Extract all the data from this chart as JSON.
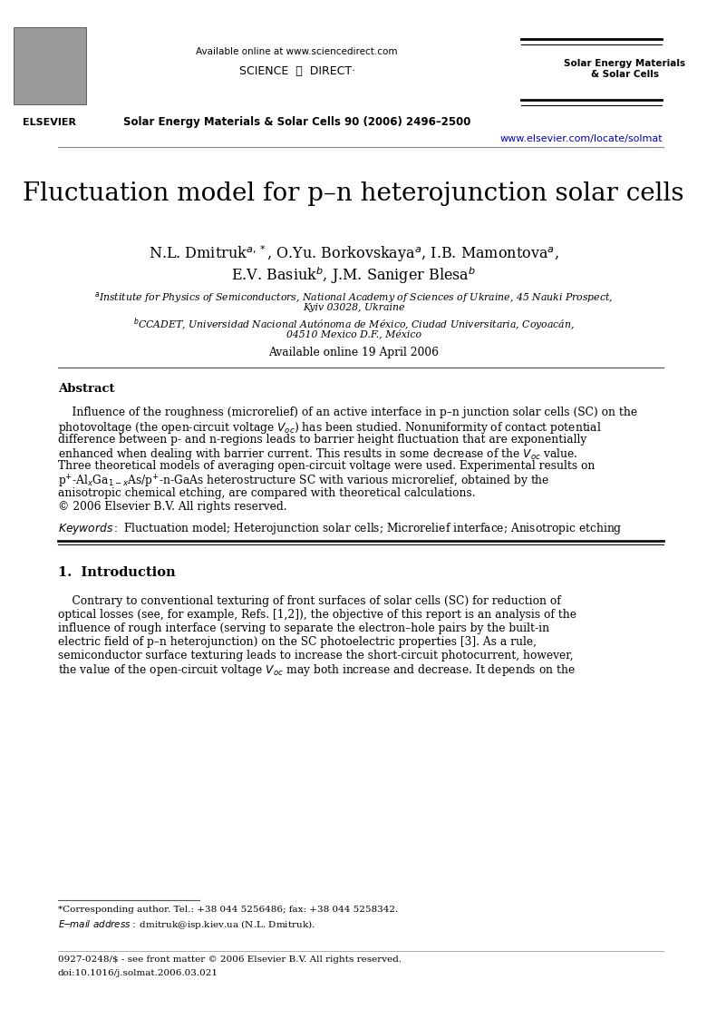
{
  "page_width": 7.8,
  "page_height": 11.34,
  "dpi": 100,
  "background_color": "#ffffff",
  "header": {
    "available_online": "Available online at www.sciencedirect.com",
    "science_direct_text": "SCIENCE  ⓓ  DIRECT·",
    "journal_name_right": "Solar Energy Materials\n& Solar Cells",
    "journal_ref": "Solar Energy Materials & Solar Cells 90 (2006) 2496–2500",
    "url": "www.elsevier.com/locate/solmat",
    "url_color": "#0000bb"
  },
  "title": "Fluctuation model for p–n heterojunction solar cells",
  "author_line1": "N.L. Dmitruk$^{a,*}$, O.Yu. Borkovskaya$^{a}$, I.B. Mamontova$^{a}$,",
  "author_line2": "E.V. Basiuk$^{b}$, J.M. Saniger Blesa$^{b}$",
  "affil_a_line1": "$^{a}$Institute for Physics of Semiconductors, National Academy of Sciences of Ukraine, 45 Nauki Prospect,",
  "affil_a_line2": "Kyiv 03028, Ukraine",
  "affil_b_line1": "$^{b}$CCADET, Universidad Nacional Autónoma de México, Ciudad Universitaria, Coyoacán,",
  "affil_b_line2": "04510 Mexico D.F., México",
  "available_online_paper": "Available online 19 April 2006",
  "abstract_title": "Abstract",
  "abstract_lines": [
    "    Influence of the roughness (microrelief) of an active interface in p–n junction solar cells (SC) on the",
    "photovoltage (the open-circuit voltage $V_{oc}$) has been studied. Nonuniformity of contact potential",
    "difference between p- and n-regions leads to barrier height fluctuation that are exponentially",
    "enhanced when dealing with barrier current. This results in some decrease of the $V_{oc}$ value.",
    "Three theoretical models of averaging open-circuit voltage were used. Experimental results on",
    "p$^{+}$-Al$_x$Ga$_{1-x}$As/p$^{+}$-n-GaAs heterostructure SC with various microrelief, obtained by the",
    "anisotropic chemical etching, are compared with theoretical calculations.",
    "© 2006 Elsevier B.V. All rights reserved."
  ],
  "keywords_line": "$\\it{Keywords:}$ Fluctuation model; Heterojunction solar cells; Microrelief interface; Anisotropic etching",
  "section1_title": "1.  Introduction",
  "intro_lines": [
    "    Contrary to conventional texturing of front surfaces of solar cells (SC) for reduction of",
    "optical losses (see, for example, Refs. [1,2]), the objective of this report is an analysis of the",
    "influence of rough interface (serving to separate the electron–hole pairs by the built-in",
    "electric field of p–n heterojunction) on the SC photoelectric properties [3]. As a rule,",
    "semiconductor surface texturing leads to increase the short-circuit photocurrent, however,",
    "the value of the open-circuit voltage $V_{oc}$ may both increase and decrease. It depends on the"
  ],
  "footnote1": "*Corresponding author. Tel.: +38 044 5256486; fax: +38 044 5258342.",
  "footnote2": "E-mail address: dmitruk@isp.kiev.ua (N.L. Dmitruk).",
  "footer1": "0927-0248/$ - see front matter © 2006 Elsevier B.V. All rights reserved.",
  "footer2": "doi:10.1016/j.solmat.2006.03.021",
  "lm": 0.082,
  "rm": 0.938,
  "cm": 0.5,
  "body_fontsize": 8.8,
  "affil_fontsize": 7.8,
  "author_fontsize": 11.5,
  "title_fontsize": 20.0,
  "section_fontsize": 10.5
}
